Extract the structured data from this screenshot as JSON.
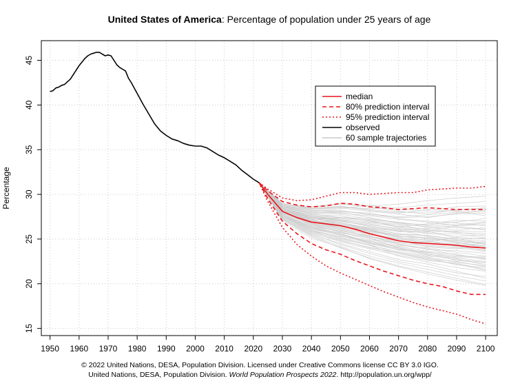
{
  "title": {
    "country": "United States of America",
    "rest": ": Percentage of population under 25 years of age"
  },
  "footer": {
    "line1": "© 2022 United Nations, DESA, Population Division. Licensed under Creative Commons license CC BY 3.0 IGO.",
    "line2_prefix": "United Nations, DESA, Population Division. ",
    "line2_italic": "World Population Prospects 2022",
    "line2_suffix": ". http://population.un.org/wpp/"
  },
  "chart_data": {
    "type": "line",
    "title": "United States of America: Percentage of population under 25 years of age",
    "xlabel": "",
    "ylabel": "Percentage",
    "xlim": [
      1947,
      2104
    ],
    "ylim": [
      14.2,
      47.2
    ],
    "x_ticks": [
      1950,
      1960,
      1970,
      1980,
      1990,
      2000,
      2010,
      2020,
      2030,
      2040,
      2050,
      2060,
      2070,
      2080,
      2090,
      2100
    ],
    "y_ticks": [
      15,
      20,
      25,
      30,
      35,
      40,
      45
    ],
    "grid": true,
    "legend_position": "top-right",
    "colors": {
      "median": "#e8141c",
      "interval": "#e8141c",
      "observed": "#000000",
      "trajectories": "#c9c9c9",
      "grid": "#c8c8c8"
    },
    "legend": [
      {
        "label": "median",
        "style": "solid",
        "color": "#e8141c"
      },
      {
        "label": "80% prediction interval",
        "style": "dashed",
        "color": "#e8141c"
      },
      {
        "label": "95% prediction interval",
        "style": "dotted",
        "color": "#e8141c"
      },
      {
        "label": "observed",
        "style": "solid",
        "color": "#000000"
      },
      {
        "label": "60 sample trajectories",
        "style": "solid",
        "color": "#c9c9c9"
      }
    ],
    "series": [
      {
        "name": "observed",
        "x": [
          1950,
          1951,
          1952,
          1953,
          1954,
          1955,
          1956,
          1957,
          1958,
          1959,
          1960,
          1961,
          1962,
          1963,
          1964,
          1965,
          1966,
          1967,
          1968,
          1969,
          1970,
          1971,
          1972,
          1973,
          1974,
          1975,
          1976,
          1977,
          1978,
          1980,
          1982,
          1984,
          1986,
          1988,
          1990,
          1992,
          1994,
          1996,
          1998,
          2000,
          2002,
          2004,
          2006,
          2008,
          2010,
          2012,
          2014,
          2016,
          2018,
          2020,
          2022
        ],
        "y": [
          41.5,
          41.6,
          41.9,
          42.0,
          42.2,
          42.3,
          42.6,
          42.9,
          43.4,
          43.9,
          44.4,
          44.8,
          45.2,
          45.5,
          45.7,
          45.8,
          45.9,
          45.9,
          45.7,
          45.5,
          45.6,
          45.5,
          45.0,
          44.5,
          44.2,
          44.0,
          43.8,
          43.0,
          42.5,
          41.3,
          40.1,
          39.0,
          37.9,
          37.1,
          36.6,
          36.2,
          36.0,
          35.7,
          35.5,
          35.4,
          35.4,
          35.2,
          34.8,
          34.4,
          34.1,
          33.7,
          33.3,
          32.7,
          32.2,
          31.7,
          31.3
        ]
      },
      {
        "name": "median",
        "x": [
          2022,
          2025,
          2030,
          2035,
          2040,
          2045,
          2050,
          2055,
          2060,
          2065,
          2070,
          2075,
          2080,
          2085,
          2090,
          2095,
          2100
        ],
        "y": [
          31.3,
          30.0,
          28.1,
          27.4,
          26.9,
          26.7,
          26.5,
          26.1,
          25.6,
          25.2,
          24.8,
          24.6,
          24.5,
          24.4,
          24.3,
          24.1,
          24.0
        ]
      },
      {
        "name": "80% prediction interval upper",
        "x": [
          2022,
          2025,
          2030,
          2035,
          2040,
          2045,
          2050,
          2055,
          2060,
          2065,
          2070,
          2075,
          2080,
          2085,
          2090,
          2095,
          2100
        ],
        "y": [
          31.3,
          30.4,
          29.2,
          28.8,
          28.6,
          28.7,
          29.0,
          28.9,
          28.6,
          28.5,
          28.3,
          28.4,
          28.5,
          28.4,
          28.3,
          28.3,
          28.3
        ]
      },
      {
        "name": "80% prediction interval lower",
        "x": [
          2022,
          2025,
          2030,
          2035,
          2040,
          2045,
          2050,
          2055,
          2060,
          2065,
          2070,
          2075,
          2080,
          2085,
          2090,
          2095,
          2100
        ],
        "y": [
          31.3,
          29.5,
          27.0,
          25.6,
          24.5,
          23.8,
          23.3,
          22.6,
          22.0,
          21.4,
          20.9,
          20.4,
          20.0,
          19.7,
          19.2,
          18.8,
          18.8
        ]
      },
      {
        "name": "95% prediction interval upper",
        "x": [
          2022,
          2025,
          2030,
          2035,
          2040,
          2045,
          2050,
          2055,
          2060,
          2065,
          2070,
          2075,
          2080,
          2085,
          2090,
          2095,
          2100
        ],
        "y": [
          31.3,
          30.6,
          29.6,
          29.3,
          29.4,
          29.8,
          30.2,
          30.2,
          30.0,
          30.1,
          30.2,
          30.2,
          30.5,
          30.6,
          30.7,
          30.7,
          30.9
        ]
      },
      {
        "name": "95% prediction interval lower",
        "x": [
          2022,
          2025,
          2030,
          2035,
          2040,
          2045,
          2050,
          2055,
          2060,
          2065,
          2070,
          2075,
          2080,
          2085,
          2090,
          2095,
          2100
        ],
        "y": [
          31.3,
          29.2,
          26.3,
          24.4,
          23.1,
          22.0,
          21.2,
          20.5,
          19.8,
          19.1,
          18.5,
          17.9,
          17.4,
          17.0,
          16.6,
          16.0,
          15.5
        ]
      }
    ],
    "trajectories": {
      "count": 60,
      "x": [
        2022,
        2030,
        2040,
        2050,
        2060,
        2070,
        2080,
        2090,
        2100
      ],
      "y": [
        [
          31.3,
          28.3,
          27.1,
          26.8,
          26.0,
          25.1,
          24.9,
          24.6,
          24.2
        ],
        [
          31.3,
          27.4,
          25.8,
          25.0,
          24.3,
          23.1,
          22.4,
          21.8,
          21.4
        ],
        [
          31.3,
          29.0,
          28.3,
          28.5,
          28.1,
          27.8,
          27.4,
          27.9,
          28.1
        ],
        [
          31.3,
          27.8,
          26.4,
          25.9,
          25.4,
          24.6,
          24.7,
          25.2,
          25.0
        ],
        [
          31.3,
          28.7,
          27.8,
          27.4,
          27.1,
          26.3,
          25.9,
          25.1,
          24.4
        ],
        [
          31.3,
          27.1,
          25.1,
          24.1,
          22.8,
          21.9,
          21.1,
          20.4,
          19.8
        ],
        [
          31.3,
          28.9,
          28.6,
          29.0,
          28.7,
          28.9,
          29.3,
          29.6,
          29.8
        ],
        [
          31.3,
          28.1,
          26.9,
          26.3,
          25.1,
          24.3,
          24.0,
          23.5,
          23.1
        ],
        [
          31.3,
          27.9,
          27.2,
          27.4,
          27.3,
          26.8,
          26.6,
          26.9,
          27.3
        ],
        [
          31.3,
          28.4,
          27.5,
          26.6,
          25.9,
          25.5,
          25.4,
          24.9,
          24.8
        ],
        [
          31.3,
          27.6,
          26.0,
          25.3,
          24.8,
          24.2,
          23.6,
          23.3,
          22.7
        ],
        [
          31.3,
          28.6,
          27.9,
          28.0,
          27.4,
          26.8,
          26.3,
          26.0,
          26.3
        ],
        [
          31.3,
          27.3,
          25.5,
          24.5,
          23.6,
          22.7,
          22.2,
          21.4,
          20.6
        ],
        [
          31.3,
          28.8,
          28.1,
          28.4,
          28.8,
          28.3,
          28.2,
          28.6,
          28.7
        ],
        [
          31.3,
          28.0,
          26.8,
          26.1,
          25.6,
          24.9,
          24.1,
          23.9,
          24.3
        ],
        [
          31.3,
          28.2,
          27.0,
          26.7,
          26.3,
          25.8,
          25.9,
          26.4,
          26.1
        ],
        [
          31.3,
          27.5,
          25.9,
          24.9,
          24.0,
          23.5,
          22.9,
          22.1,
          21.8
        ],
        [
          31.3,
          28.5,
          27.6,
          27.2,
          26.7,
          26.1,
          25.6,
          25.6,
          25.1
        ],
        [
          31.3,
          27.7,
          26.2,
          25.7,
          25.1,
          24.0,
          23.3,
          23.0,
          22.9
        ],
        [
          31.3,
          28.9,
          28.4,
          28.7,
          28.2,
          27.9,
          28.3,
          28.1,
          27.6
        ],
        [
          31.3,
          28.2,
          27.3,
          27.0,
          26.5,
          26.0,
          25.3,
          24.7,
          23.9
        ],
        [
          31.3,
          27.2,
          25.4,
          24.2,
          23.1,
          22.3,
          21.6,
          20.9,
          20.3
        ],
        [
          31.3,
          28.6,
          27.7,
          27.6,
          27.0,
          26.4,
          26.7,
          27.1,
          27.0
        ],
        [
          31.3,
          27.9,
          26.6,
          25.8,
          24.9,
          24.6,
          24.2,
          24.0,
          23.6
        ],
        [
          31.3,
          28.3,
          27.4,
          27.3,
          26.9,
          26.6,
          26.0,
          25.7,
          25.6
        ],
        [
          31.3,
          27.6,
          26.1,
          25.5,
          24.6,
          23.8,
          23.6,
          22.8,
          22.1
        ],
        [
          31.3,
          28.7,
          28.0,
          27.9,
          27.6,
          27.2,
          26.9,
          26.5,
          26.8
        ],
        [
          31.3,
          28.1,
          26.7,
          26.0,
          25.3,
          24.4,
          23.8,
          23.7,
          23.4
        ],
        [
          31.3,
          28.4,
          27.6,
          27.1,
          26.4,
          25.9,
          25.7,
          25.3,
          25.5
        ],
        [
          31.3,
          27.4,
          25.7,
          24.7,
          23.9,
          23.2,
          22.6,
          22.3,
          21.6
        ],
        [
          31.3,
          28.8,
          28.2,
          28.2,
          27.7,
          27.4,
          27.5,
          27.8,
          27.9
        ],
        [
          31.3,
          28.0,
          26.5,
          25.8,
          25.2,
          24.8,
          24.3,
          24.1,
          23.8
        ],
        [
          31.3,
          28.5,
          27.3,
          26.9,
          26.2,
          25.6,
          25.0,
          24.8,
          24.6
        ],
        [
          31.3,
          27.7,
          26.3,
          25.6,
          24.7,
          24.1,
          23.4,
          22.6,
          22.3
        ],
        [
          31.3,
          28.9,
          28.5,
          28.9,
          28.6,
          28.1,
          27.8,
          28.3,
          28.5
        ],
        [
          31.3,
          28.3,
          27.2,
          26.5,
          25.8,
          25.3,
          25.2,
          24.6,
          24.1
        ],
        [
          31.3,
          27.3,
          25.6,
          24.4,
          23.4,
          22.5,
          21.9,
          21.2,
          20.8
        ],
        [
          31.3,
          28.6,
          27.8,
          27.8,
          27.2,
          26.9,
          26.5,
          26.6,
          26.9
        ],
        [
          31.3,
          27.8,
          26.4,
          25.6,
          24.5,
          23.8,
          23.1,
          22.9,
          22.5
        ],
        [
          31.3,
          28.2,
          27.1,
          26.4,
          26.0,
          25.4,
          24.8,
          24.3,
          24.5
        ],
        [
          31.3,
          28.0,
          27.0,
          26.6,
          26.2,
          26.0,
          26.2,
          26.5,
          26.6
        ],
        [
          31.3,
          27.5,
          26.0,
          25.1,
          24.3,
          23.6,
          23.0,
          22.4,
          22.0
        ],
        [
          31.3,
          28.7,
          28.1,
          28.1,
          27.9,
          27.3,
          27.0,
          26.8,
          26.5
        ],
        [
          31.3,
          28.1,
          26.8,
          26.2,
          25.5,
          25.0,
          24.5,
          24.4,
          24.0
        ],
        [
          31.3,
          28.4,
          27.5,
          27.0,
          26.6,
          26.2,
          25.8,
          25.9,
          25.8
        ],
        [
          31.3,
          27.6,
          25.9,
          25.2,
          24.4,
          23.4,
          22.8,
          22.5,
          21.9
        ],
        [
          31.3,
          28.8,
          28.3,
          28.6,
          28.3,
          28.0,
          28.0,
          28.2,
          28.4
        ],
        [
          31.3,
          27.9,
          26.6,
          26.0,
          25.3,
          24.5,
          23.9,
          23.2,
          22.8
        ],
        [
          31.3,
          28.3,
          27.3,
          26.8,
          26.1,
          25.2,
          24.6,
          24.5,
          24.7
        ],
        [
          31.3,
          27.2,
          25.3,
          24.0,
          22.9,
          22.0,
          21.3,
          20.6,
          19.9
        ],
        [
          31.3,
          28.6,
          27.9,
          28.1,
          27.8,
          27.5,
          27.7,
          28.0,
          28.2
        ],
        [
          31.3,
          28.0,
          26.7,
          26.3,
          25.7,
          25.0,
          24.7,
          24.2,
          23.7
        ],
        [
          31.3,
          28.5,
          27.6,
          27.4,
          27.1,
          26.7,
          26.4,
          26.3,
          26.0
        ],
        [
          31.3,
          27.4,
          25.7,
          24.8,
          24.1,
          23.4,
          22.7,
          22.2,
          21.5
        ],
        [
          31.3,
          28.9,
          28.4,
          28.6,
          28.4,
          28.5,
          28.8,
          29.0,
          29.2
        ],
        [
          31.3,
          28.1,
          26.9,
          26.4,
          25.9,
          25.3,
          25.1,
          24.8,
          24.4
        ],
        [
          31.3,
          27.8,
          26.3,
          25.4,
          24.5,
          24.0,
          23.2,
          22.7,
          22.4
        ],
        [
          31.3,
          28.4,
          27.4,
          27.1,
          26.8,
          26.4,
          26.1,
          25.8,
          25.3
        ],
        [
          31.3,
          27.6,
          26.2,
          25.5,
          24.7,
          23.9,
          23.5,
          23.1,
          23.0
        ],
        [
          31.3,
          28.2,
          27.0,
          26.5,
          26.1,
          25.6,
          25.4,
          25.0,
          25.1
        ]
      ]
    }
  }
}
